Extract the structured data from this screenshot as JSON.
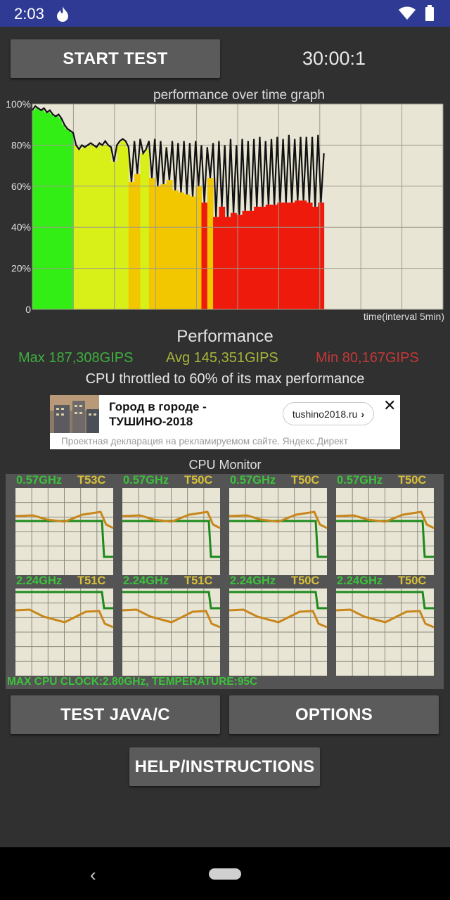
{
  "status_bar": {
    "time": "2:03",
    "icons": [
      "flame-icon",
      "wifi-icon",
      "battery-icon"
    ]
  },
  "buttons": {
    "start_test": "START TEST",
    "test_java_c": "TEST JAVA/C",
    "options": "OPTIONS",
    "help": "HELP/INSTRUCTIONS"
  },
  "timer": "30:00:1",
  "chart_data": {
    "type": "area",
    "title": "performance over time graph",
    "xlabel": "time(interval 5min)",
    "ylabel": "",
    "y_ticks": [
      "0",
      "20%",
      "40%",
      "60%",
      "80%",
      "100%"
    ],
    "ylim": [
      0,
      100
    ],
    "x_range": [
      0,
      1
    ],
    "grid": true,
    "series": [
      {
        "values_x": [
          0.0,
          0.01,
          0.02,
          0.03,
          0.04,
          0.05,
          0.06,
          0.07,
          0.08,
          0.09,
          0.1,
          0.11,
          0.12,
          0.13,
          0.14,
          0.15,
          0.16,
          0.17,
          0.18,
          0.19,
          0.2,
          0.21,
          0.22,
          0.23,
          0.24,
          0.25,
          0.26,
          0.27,
          0.28,
          0.29,
          0.3,
          0.31,
          0.32,
          0.33,
          0.34,
          0.35,
          0.36,
          0.37,
          0.38,
          0.39,
          0.4,
          0.41,
          0.42,
          0.43,
          0.44,
          0.45,
          0.46,
          0.47,
          0.48,
          0.49,
          0.5,
          0.51,
          0.52,
          0.53,
          0.54,
          0.55,
          0.56,
          0.57,
          0.58,
          0.59,
          0.6,
          0.61,
          0.62,
          0.63,
          0.64,
          0.65,
          0.66,
          0.67,
          0.68,
          0.69,
          0.7,
          0.71,
          0.72,
          0.73,
          0.74,
          0.75,
          0.76,
          0.77,
          0.78,
          0.79,
          0.8,
          0.81,
          0.82,
          0.83,
          0.84,
          0.85,
          0.86,
          0.87,
          0.88,
          0.89,
          0.9,
          0.91,
          0.92,
          0.93,
          0.94,
          0.95,
          0.96,
          0.97,
          0.98,
          0.99,
          1.0
        ],
        "values": [
          97,
          99,
          98,
          97,
          98,
          96,
          97,
          95,
          94,
          95,
          93,
          90,
          88,
          87,
          86,
          80,
          78,
          80,
          79,
          80,
          81,
          80,
          79,
          81,
          80,
          82,
          80,
          79,
          72,
          80,
          82,
          83,
          82,
          79,
          62,
          82,
          66,
          83,
          76,
          78,
          82,
          64,
          83,
          60,
          82,
          61,
          79,
          63,
          82,
          58,
          81,
          57,
          82,
          56,
          81,
          55,
          82,
          60,
          80,
          52,
          79,
          64,
          81,
          45,
          82,
          50,
          80,
          45,
          83,
          47,
          80,
          46,
          83,
          48,
          82,
          48,
          83,
          50,
          84,
          50,
          82,
          51,
          83,
          51,
          84,
          52,
          83,
          52,
          85,
          52,
          83,
          53,
          84,
          53,
          84,
          52,
          84,
          50,
          85,
          52,
          76
        ]
      }
    ],
    "data_end_fraction": 0.71,
    "colors": {
      "high": "#33ee14",
      "mid": "#d8f018",
      "low_yellow": "#f2c700",
      "low_red": "#ee1a0c",
      "background": "#e8e5d4"
    }
  },
  "performance": {
    "title": "Performance",
    "max": "Max 187,308GIPS",
    "avg": "Avg 145,351GIPS",
    "min": "Min 80,167GIPS",
    "throttle_note": "CPU throttled to 60% of its max performance"
  },
  "ad": {
    "headline": "Город в городе - ТУШИНО-2018",
    "domain": "tushino2018.ru",
    "close": "✕",
    "declaration": "Проектная декларация на рекламируемом сайте. Яндекс.Директ"
  },
  "cpu_monitor": {
    "title": "CPU Monitor",
    "cores": [
      {
        "freq": "0.57GHz",
        "temp": "T53C"
      },
      {
        "freq": "0.57GHz",
        "temp": "T50C"
      },
      {
        "freq": "0.57GHz",
        "temp": "T50C"
      },
      {
        "freq": "0.57GHz",
        "temp": "T50C"
      },
      {
        "freq": "2.24GHz",
        "temp": "T51C"
      },
      {
        "freq": "2.24GHz",
        "temp": "T51C"
      },
      {
        "freq": "2.24GHz",
        "temp": "T50C"
      },
      {
        "freq": "2.24GHz",
        "temp": "T50C"
      }
    ],
    "summary": "MAX CPU CLOCK:2.80GHz, TEMPERATURE:95C"
  },
  "nav": {
    "back": "‹"
  }
}
